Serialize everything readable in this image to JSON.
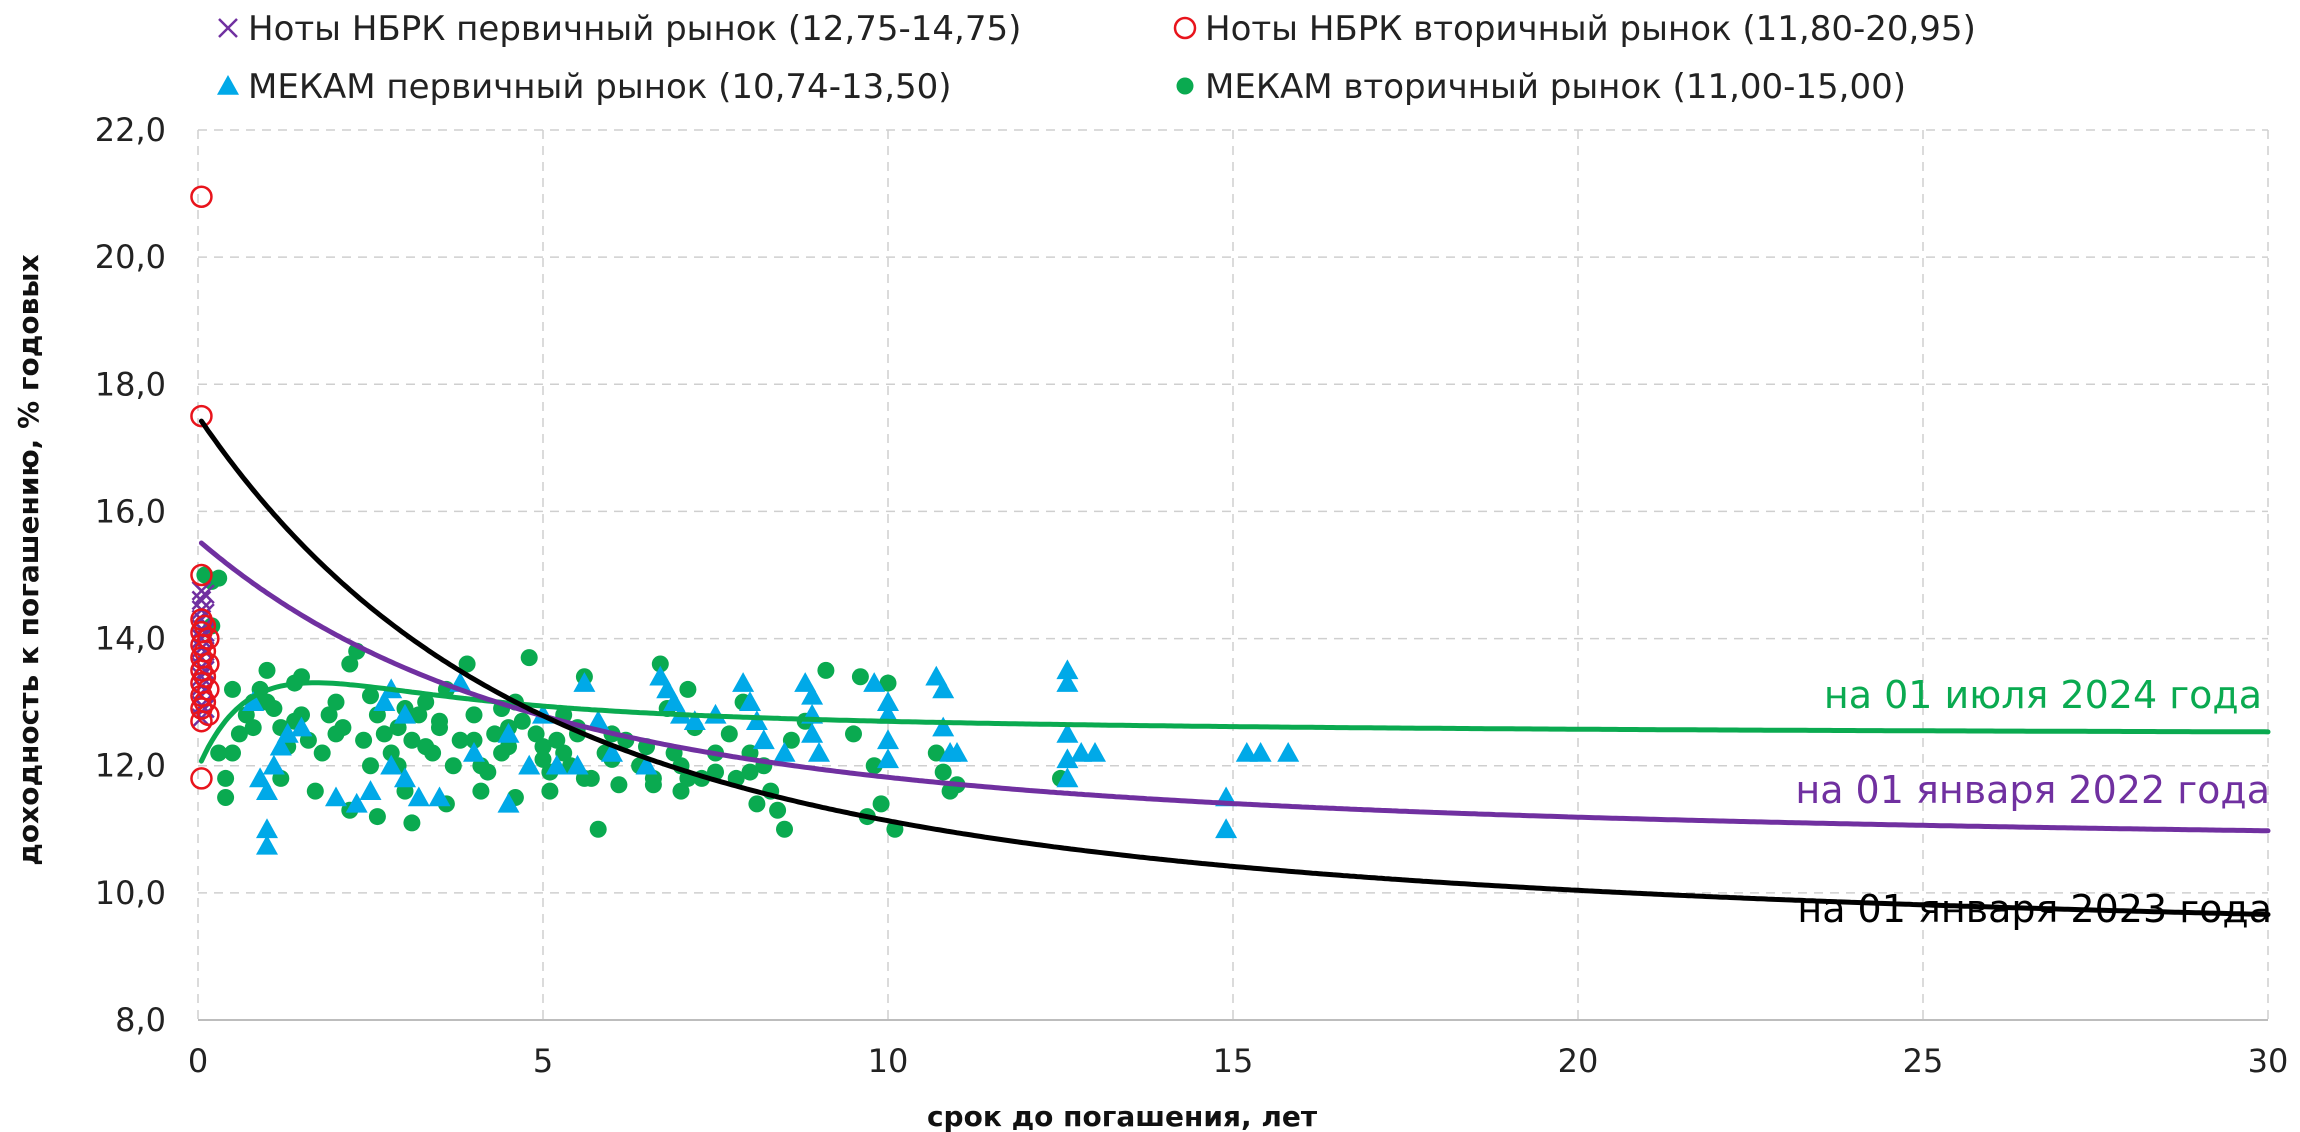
{
  "chart_data": {
    "type": "scatter",
    "xlabel": "срок до погашения, лет",
    "ylabel": "доходность к погашению, % годовых",
    "xlim": [
      0,
      30
    ],
    "ylim": [
      8,
      22
    ],
    "x_ticks": [
      0,
      5,
      10,
      15,
      20,
      25,
      30
    ],
    "y_ticks": [
      "8,0",
      "10,0",
      "12,0",
      "14,0",
      "16,0",
      "18,0",
      "20,0",
      "22,0"
    ],
    "grid": true,
    "legend_position": "top",
    "legend": [
      {
        "label": "Ноты НБРК первичный рынок (12,75-14,75)",
        "marker": "cross",
        "color": "#7030A0"
      },
      {
        "label": "Ноты НБРК вторичный рынок (11,80-20,95)",
        "marker": "open-circle",
        "color": "#E8141C"
      },
      {
        "label": "МЕКАМ первичный рынок (10,74-13,50)",
        "marker": "triangle",
        "color": "#00A9E8"
      },
      {
        "label": "МЕКАМ вторичный рынок (11,00-15,00)",
        "marker": "dot",
        "color": "#0AAA50"
      }
    ],
    "series": [
      {
        "name": "Ноты НБРК первичный рынок (12,75-14,75)",
        "marker": "cross",
        "color": "#7030A0",
        "points": [
          [
            0.05,
            14.75
          ],
          [
            0.05,
            14.6
          ],
          [
            0.05,
            14.45
          ],
          [
            0.05,
            14.3
          ],
          [
            0.05,
            14.15
          ],
          [
            0.05,
            14.0
          ],
          [
            0.05,
            13.85
          ],
          [
            0.05,
            13.7
          ],
          [
            0.05,
            13.55
          ],
          [
            0.05,
            13.4
          ],
          [
            0.05,
            13.25
          ],
          [
            0.05,
            13.1
          ],
          [
            0.05,
            12.95
          ],
          [
            0.05,
            12.75
          ],
          [
            0.1,
            14.7
          ],
          [
            0.1,
            14.4
          ],
          [
            0.1,
            14.1
          ],
          [
            0.1,
            13.8
          ],
          [
            0.1,
            13.5
          ],
          [
            0.1,
            13.2
          ],
          [
            0.1,
            12.9
          ]
        ]
      },
      {
        "name": "Ноты НБРК вторичный рынок (11,80-20,95)",
        "marker": "open-circle",
        "color": "#E8141C",
        "points": [
          [
            0.05,
            20.95
          ],
          [
            0.05,
            17.5
          ],
          [
            0.05,
            15.0
          ],
          [
            0.05,
            11.8
          ],
          [
            0.05,
            14.3
          ],
          [
            0.05,
            14.1
          ],
          [
            0.05,
            13.9
          ],
          [
            0.05,
            13.7
          ],
          [
            0.05,
            13.5
          ],
          [
            0.05,
            13.3
          ],
          [
            0.05,
            13.1
          ],
          [
            0.05,
            12.9
          ],
          [
            0.05,
            12.7
          ],
          [
            0.1,
            14.2
          ],
          [
            0.1,
            13.8
          ],
          [
            0.1,
            13.4
          ],
          [
            0.1,
            13.0
          ],
          [
            0.15,
            14.0
          ],
          [
            0.15,
            13.6
          ],
          [
            0.15,
            13.2
          ],
          [
            0.15,
            12.8
          ]
        ]
      },
      {
        "name": "МЕКАМ первичный рынок (10,74-13,50)",
        "marker": "triangle",
        "color": "#00A9E8",
        "points": [
          [
            1.0,
            11.0
          ],
          [
            1.0,
            10.74
          ],
          [
            1.0,
            11.6
          ],
          [
            0.9,
            11.8
          ],
          [
            1.1,
            12.0
          ],
          [
            1.2,
            12.3
          ],
          [
            1.5,
            12.6
          ],
          [
            2.0,
            11.5
          ],
          [
            2.5,
            11.6
          ],
          [
            2.3,
            11.4
          ],
          [
            2.8,
            12.0
          ],
          [
            3.0,
            11.8
          ],
          [
            3.2,
            11.5
          ],
          [
            3.5,
            11.5
          ],
          [
            4.5,
            11.4
          ],
          [
            5.5,
            12.0
          ],
          [
            2.7,
            13.0
          ],
          [
            2.8,
            13.2
          ],
          [
            3.0,
            12.8
          ],
          [
            3.8,
            13.3
          ],
          [
            4.5,
            12.5
          ],
          [
            5.0,
            12.8
          ],
          [
            5.6,
            13.3
          ],
          [
            5.8,
            12.7
          ],
          [
            6.0,
            12.2
          ],
          [
            6.7,
            13.4
          ],
          [
            6.8,
            13.2
          ],
          [
            6.9,
            13.0
          ],
          [
            7.0,
            12.8
          ],
          [
            7.2,
            12.7
          ],
          [
            7.5,
            12.8
          ],
          [
            7.9,
            13.3
          ],
          [
            8.0,
            13.0
          ],
          [
            8.1,
            12.7
          ],
          [
            8.2,
            12.4
          ],
          [
            8.5,
            12.2
          ],
          [
            8.8,
            13.3
          ],
          [
            8.9,
            13.1
          ],
          [
            8.9,
            12.8
          ],
          [
            8.9,
            12.5
          ],
          [
            9.0,
            12.2
          ],
          [
            9.8,
            13.3
          ],
          [
            10.0,
            13.0
          ],
          [
            10.0,
            12.8
          ],
          [
            10.0,
            12.4
          ],
          [
            10.0,
            12.1
          ],
          [
            10.7,
            13.4
          ],
          [
            10.8,
            13.2
          ],
          [
            10.8,
            12.6
          ],
          [
            10.9,
            12.2
          ],
          [
            11.0,
            12.2
          ],
          [
            12.6,
            13.5
          ],
          [
            12.6,
            13.3
          ],
          [
            12.6,
            12.5
          ],
          [
            12.6,
            12.1
          ],
          [
            12.6,
            11.8
          ],
          [
            12.8,
            12.2
          ],
          [
            13.0,
            12.2
          ],
          [
            14.9,
            11.5
          ],
          [
            14.9,
            11.0
          ],
          [
            15.2,
            12.2
          ],
          [
            15.4,
            12.2
          ],
          [
            15.8,
            12.2
          ],
          [
            0.8,
            13.0
          ],
          [
            1.3,
            12.5
          ],
          [
            4.0,
            12.2
          ],
          [
            4.8,
            12.0
          ],
          [
            5.2,
            12.0
          ],
          [
            6.5,
            12.0
          ]
        ]
      },
      {
        "name": "МЕКАМ вторичный рынок (11,00-15,00)",
        "marker": "dot",
        "color": "#0AAA50",
        "points": [
          [
            0.1,
            15.0
          ],
          [
            0.2,
            14.9
          ],
          [
            0.3,
            14.95
          ],
          [
            0.2,
            14.2
          ],
          [
            0.3,
            12.2
          ],
          [
            0.4,
            11.5
          ],
          [
            0.5,
            12.2
          ],
          [
            0.4,
            11.8
          ],
          [
            0.6,
            12.5
          ],
          [
            0.7,
            12.8
          ],
          [
            0.8,
            13.0
          ],
          [
            0.9,
            13.2
          ],
          [
            1.0,
            13.5
          ],
          [
            1.1,
            12.9
          ],
          [
            1.2,
            12.6
          ],
          [
            1.3,
            12.3
          ],
          [
            1.4,
            13.3
          ],
          [
            1.5,
            13.4
          ],
          [
            1.6,
            12.4
          ],
          [
            1.8,
            12.2
          ],
          [
            1.9,
            12.8
          ],
          [
            2.0,
            13.0
          ],
          [
            2.1,
            12.6
          ],
          [
            2.2,
            13.6
          ],
          [
            2.3,
            13.8
          ],
          [
            2.4,
            12.4
          ],
          [
            2.5,
            12.0
          ],
          [
            2.6,
            12.8
          ],
          [
            2.7,
            12.5
          ],
          [
            2.8,
            12.2
          ],
          [
            2.9,
            12.0
          ],
          [
            3.0,
            11.6
          ],
          [
            3.1,
            12.4
          ],
          [
            3.2,
            12.8
          ],
          [
            3.3,
            13.0
          ],
          [
            3.4,
            12.2
          ],
          [
            3.5,
            12.6
          ],
          [
            3.6,
            13.2
          ],
          [
            3.7,
            12.0
          ],
          [
            3.8,
            12.4
          ],
          [
            3.9,
            13.6
          ],
          [
            4.0,
            12.8
          ],
          [
            4.1,
            12.0
          ],
          [
            4.2,
            11.9
          ],
          [
            4.3,
            12.5
          ],
          [
            4.4,
            12.9
          ],
          [
            4.5,
            12.3
          ],
          [
            4.6,
            13.0
          ],
          [
            4.7,
            12.7
          ],
          [
            4.8,
            13.7
          ],
          [
            4.9,
            12.5
          ],
          [
            5.0,
            12.1
          ],
          [
            5.1,
            11.9
          ],
          [
            5.2,
            12.4
          ],
          [
            5.3,
            12.8
          ],
          [
            5.4,
            12.0
          ],
          [
            5.5,
            12.6
          ],
          [
            5.6,
            13.4
          ],
          [
            5.7,
            11.8
          ],
          [
            5.8,
            11.0
          ],
          [
            5.9,
            12.2
          ],
          [
            6.0,
            12.5
          ],
          [
            6.2,
            12.4
          ],
          [
            6.4,
            12.0
          ],
          [
            6.6,
            11.8
          ],
          [
            6.7,
            13.6
          ],
          [
            6.8,
            12.9
          ],
          [
            6.9,
            12.2
          ],
          [
            7.0,
            11.6
          ],
          [
            7.1,
            13.2
          ],
          [
            7.2,
            12.6
          ],
          [
            7.3,
            11.8
          ],
          [
            7.5,
            12.2
          ],
          [
            7.7,
            12.5
          ],
          [
            7.8,
            11.8
          ],
          [
            7.9,
            13.0
          ],
          [
            8.0,
            12.2
          ],
          [
            8.1,
            11.4
          ],
          [
            8.2,
            12.0
          ],
          [
            8.3,
            11.6
          ],
          [
            8.4,
            11.3
          ],
          [
            8.5,
            11.0
          ],
          [
            8.6,
            12.4
          ],
          [
            8.8,
            12.7
          ],
          [
            9.1,
            13.5
          ],
          [
            9.5,
            12.5
          ],
          [
            9.6,
            13.4
          ],
          [
            9.7,
            11.2
          ],
          [
            9.8,
            12.0
          ],
          [
            9.9,
            11.4
          ],
          [
            10.0,
            13.3
          ],
          [
            10.1,
            11.0
          ],
          [
            10.7,
            12.2
          ],
          [
            10.8,
            11.9
          ],
          [
            10.9,
            11.6
          ],
          [
            11.0,
            11.7
          ],
          [
            12.5,
            11.8
          ],
          [
            0.5,
            13.2
          ],
          [
            1.0,
            13.0
          ],
          [
            1.5,
            12.8
          ],
          [
            2.0,
            12.5
          ],
          [
            2.5,
            13.1
          ],
          [
            3.0,
            12.9
          ],
          [
            3.5,
            12.7
          ],
          [
            4.0,
            12.4
          ],
          [
            4.5,
            12.6
          ],
          [
            5.0,
            12.3
          ],
          [
            5.5,
            12.5
          ],
          [
            6.0,
            12.1
          ],
          [
            6.5,
            12.3
          ],
          [
            7.0,
            12.0
          ],
          [
            7.5,
            11.9
          ],
          [
            8.0,
            11.9
          ],
          [
            1.2,
            11.8
          ],
          [
            1.7,
            11.6
          ],
          [
            2.2,
            11.3
          ],
          [
            2.6,
            11.2
          ],
          [
            3.1,
            11.1
          ],
          [
            3.6,
            11.4
          ],
          [
            4.1,
            11.6
          ],
          [
            4.6,
            11.5
          ],
          [
            5.1,
            11.6
          ],
          [
            5.6,
            11.8
          ],
          [
            6.1,
            11.7
          ],
          [
            6.6,
            11.7
          ],
          [
            7.1,
            11.8
          ],
          [
            0.8,
            12.6
          ],
          [
            1.4,
            12.7
          ],
          [
            2.9,
            12.6
          ],
          [
            3.3,
            12.3
          ],
          [
            4.4,
            12.2
          ],
          [
            5.3,
            12.2
          ]
        ]
      }
    ],
    "curves": [
      {
        "label": "на 01 июля 2024 года",
        "color": "#0AAA50"
      },
      {
        "label": "на 01 января 2022 года",
        "color": "#7030A0"
      },
      {
        "label": "на 01 января 2023 года",
        "color": "#000000"
      }
    ]
  }
}
